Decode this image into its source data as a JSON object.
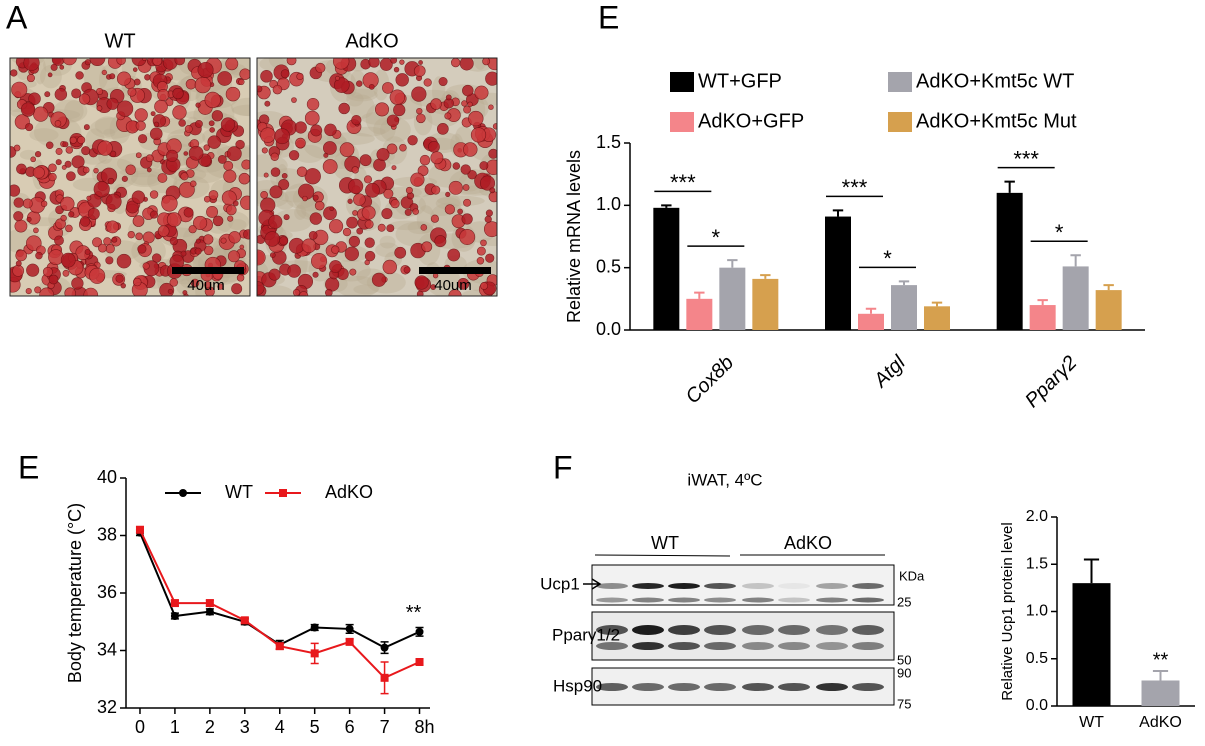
{
  "figure": {
    "panel_a": {
      "letter": "A",
      "labels": [
        "WT",
        "AdKO"
      ],
      "scale_bar": "40um"
    },
    "panel_f": {
      "letter": "F",
      "title": "iWAT, 4ºC",
      "groups": [
        "WT",
        "AdKO"
      ],
      "bands": [
        "Ucp1",
        "Pparγ1/2",
        "Hsp90"
      ],
      "kda_unit": "KDa",
      "markers": [
        "25",
        "50",
        "90",
        "75"
      ]
    }
  },
  "chart_data": [
    {
      "type": "bar",
      "panel": "E",
      "ylabel": "Relative mRNA levels",
      "categories": [
        "Cox8b",
        "Atgl",
        "Pparγ2"
      ],
      "series": [
        {
          "name": "WT+GFP",
          "color": "#000000",
          "values": [
            0.98,
            0.91,
            1.1
          ],
          "errors": [
            0.02,
            0.05,
            0.09
          ]
        },
        {
          "name": "AdKO+GFP",
          "color": "#f4858a",
          "values": [
            0.25,
            0.13,
            0.2
          ],
          "errors": [
            0.05,
            0.04,
            0.04
          ]
        },
        {
          "name": "AdKO+Kmt5c WT",
          "color": "#a4a4ac",
          "values": [
            0.5,
            0.36,
            0.51
          ],
          "errors": [
            0.06,
            0.03,
            0.09
          ]
        },
        {
          "name": "AdKO+Kmt5c Mut",
          "color": "#d6a04e",
          "values": [
            0.41,
            0.19,
            0.32
          ],
          "errors": [
            0.03,
            0.03,
            0.04
          ]
        }
      ],
      "annotations": [
        "***",
        "*",
        "***",
        "*",
        "***",
        "*"
      ],
      "ylim": [
        0,
        1.5
      ],
      "yticks": [
        {
          "value": 0,
          "label": "0.0"
        },
        {
          "value": 0.5,
          "label": "0.5"
        },
        {
          "value": 1,
          "label": "1.0"
        },
        {
          "value": 1.5,
          "label": "1.5"
        }
      ]
    },
    {
      "type": "line",
      "panel": "E",
      "ylabel": "Body temperature (°C)",
      "x": [
        0,
        1,
        2,
        3,
        4,
        5,
        6,
        7,
        8
      ],
      "series": [
        {
          "name": "WT",
          "color": "#000000",
          "marker": "circle",
          "values": [
            38.1,
            35.2,
            35.35,
            35.0,
            34.2,
            34.8,
            34.75,
            34.1,
            34.65
          ],
          "errors": [
            0.1,
            0.1,
            0.1,
            0.1,
            0.15,
            0.1,
            0.15,
            0.2,
            0.15
          ]
        },
        {
          "name": "AdKO",
          "color": "#e8181c",
          "marker": "square",
          "values": [
            38.2,
            35.65,
            35.65,
            35.05,
            34.15,
            33.9,
            34.3,
            33.05,
            33.6
          ],
          "errors": [
            0.1,
            0.1,
            0.1,
            0.1,
            0.1,
            0.35,
            0.1,
            0.55,
            0.1
          ]
        }
      ],
      "annotations": [
        "**"
      ],
      "xlim": [
        -0.4,
        8.3
      ],
      "xticks": [
        0,
        1,
        2,
        3,
        4,
        5,
        6,
        7,
        {
          "value": 8,
          "label": "8h"
        }
      ],
      "ylim": [
        32,
        40
      ],
      "yticks": [
        32,
        34,
        36,
        38,
        40
      ]
    },
    {
      "type": "bar",
      "ylabel": "Relative Ucp1 protein level",
      "categories": [
        "WT",
        "AdKO"
      ],
      "series": [
        {
          "colors": [
            "#000000",
            "#a4a4ac"
          ],
          "values": [
            1.3,
            0.27
          ],
          "errors": [
            0.25,
            0.1
          ]
        }
      ],
      "annotations": [
        "**"
      ],
      "ylim": [
        0,
        2
      ],
      "yticks": [
        {
          "value": 0,
          "label": "0.0"
        },
        {
          "value": 0.5,
          "label": "0.5"
        },
        {
          "value": 1,
          "label": "1.0"
        },
        {
          "value": 1.5,
          "label": "1.5"
        },
        {
          "value": 2,
          "label": "2.0"
        }
      ]
    }
  ]
}
